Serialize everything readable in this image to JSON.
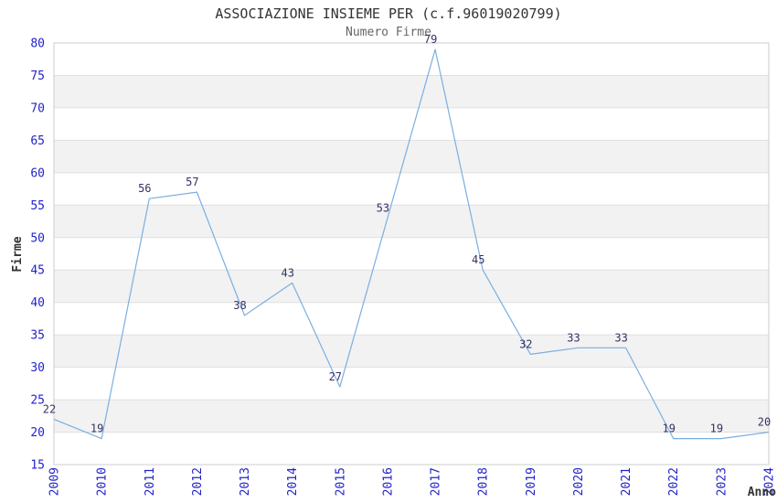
{
  "chart_data": {
    "type": "line",
    "title": "ASSOCIAZIONE INSIEME PER (c.f.96019020799)",
    "subtitle": "Numero Firme",
    "xlabel": "Anno",
    "ylabel": "Firme",
    "categories": [
      "2009",
      "2010",
      "2011",
      "2012",
      "2013",
      "2014",
      "2015",
      "2016",
      "2017",
      "2018",
      "2019",
      "2020",
      "2021",
      "2022",
      "2023",
      "2024"
    ],
    "series": [
      {
        "name": "Numero Firme",
        "values": [
          22,
          19,
          56,
          57,
          38,
          43,
          27,
          53,
          79,
          45,
          32,
          33,
          33,
          19,
          19,
          20
        ]
      }
    ],
    "ylim": [
      15,
      80
    ],
    "ytick_step": 5,
    "yticks": [
      15,
      20,
      25,
      30,
      35,
      40,
      45,
      50,
      55,
      60,
      65,
      70,
      75,
      80
    ],
    "grid": true,
    "legend_position": "none",
    "band_pattern": "alternating-horizontal",
    "colors": {
      "line": "#7aafe0",
      "tick_label": "#2222cc",
      "data_label": "#333366",
      "band": "#f2f2f2",
      "gridline": "#e0e0e0",
      "border": "#cccccc",
      "title": "#333333",
      "subtitle": "#666666",
      "axis_title": "#333333",
      "background": "#ffffff"
    }
  }
}
